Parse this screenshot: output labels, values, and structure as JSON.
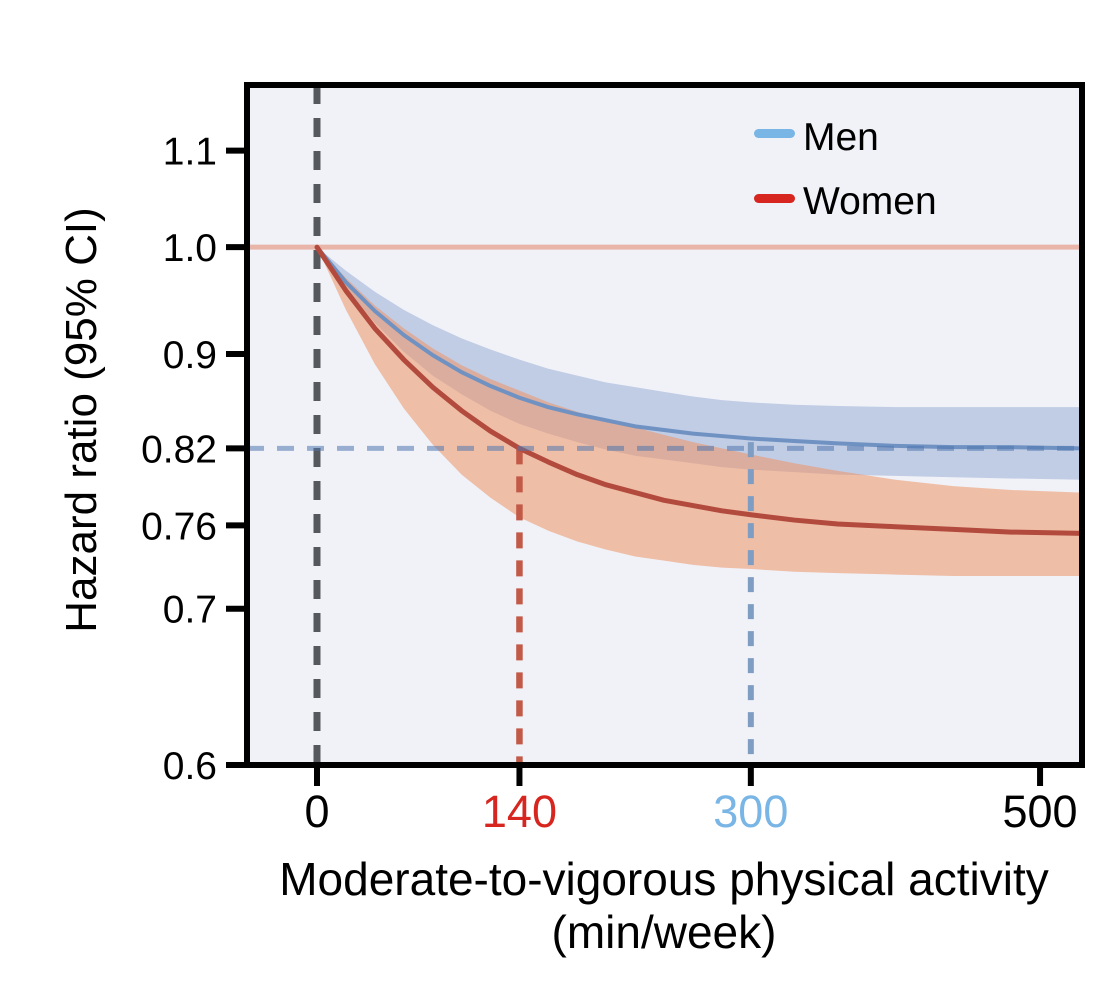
{
  "figure": {
    "background": "#ffffff",
    "plot_background": "#f0f2f8",
    "frame_color": "#000000",
    "tick_color": "#000000",
    "text_color": "#000000"
  },
  "chart_data": {
    "type": "line",
    "title": "",
    "xlabel_line1": "Moderate-to-vigorous physical activity",
    "xlabel_line2": "(min/week)",
    "ylabel": "Hazard ratio (95% CI)",
    "y_scale": "log",
    "x_range": [
      -48.4,
      529
    ],
    "y_range": [
      0.6,
      1.1735
    ],
    "grid": false,
    "legend_position": "top-right-inside",
    "x_ticks": [
      {
        "value": 0,
        "label": "0",
        "color": "#000000"
      },
      {
        "value": 140,
        "label": "140",
        "color": "#d6261f"
      },
      {
        "value": 300,
        "label": "300",
        "color": "#79b5e5"
      },
      {
        "value": 500,
        "label": "500",
        "color": "#000000"
      }
    ],
    "y_ticks": [
      {
        "value": 1.1,
        "label": "1.1"
      },
      {
        "value": 1.0,
        "label": "1.0"
      },
      {
        "value": 0.9,
        "label": "0.9"
      },
      {
        "value": 0.82,
        "label": "0.82"
      },
      {
        "value": 0.76,
        "label": "0.76"
      },
      {
        "value": 0.7,
        "label": "0.7"
      },
      {
        "value": 0.6,
        "label": "0.6"
      }
    ],
    "x": [
      0,
      20,
      40,
      60,
      80,
      100,
      120,
      140,
      160,
      180,
      200,
      220,
      240,
      260,
      280,
      300,
      330,
      360,
      400,
      440,
      480,
      529
    ],
    "series": [
      {
        "name": "men",
        "label": "Men",
        "legend_color": "#79b5e5",
        "line_color": "#6f92c3",
        "line_width": 4,
        "band_color": "rgba(150,168,210,0.52)",
        "y": [
          1.0,
          0.966,
          0.939,
          0.917,
          0.899,
          0.884,
          0.872,
          0.862,
          0.854,
          0.848,
          0.843,
          0.838,
          0.835,
          0.832,
          0.83,
          0.828,
          0.826,
          0.824,
          0.822,
          0.821,
          0.821,
          0.82
        ],
        "ci_upper": [
          1.0,
          0.977,
          0.957,
          0.94,
          0.926,
          0.914,
          0.904,
          0.895,
          0.887,
          0.881,
          0.875,
          0.871,
          0.867,
          0.863,
          0.86,
          0.858,
          0.856,
          0.855,
          0.854,
          0.854,
          0.854,
          0.854
        ],
        "ci_lower": [
          1.0,
          0.96,
          0.928,
          0.902,
          0.881,
          0.865,
          0.851,
          0.84,
          0.832,
          0.825,
          0.819,
          0.814,
          0.811,
          0.808,
          0.805,
          0.803,
          0.801,
          0.799,
          0.798,
          0.797,
          0.796,
          0.795
        ]
      },
      {
        "name": "women",
        "label": "Women",
        "legend_color": "#d6261f",
        "line_color": "#b24b3e",
        "line_width": 5,
        "band_color": "rgba(238,148,100,0.55)",
        "y": [
          1.0,
          0.958,
          0.923,
          0.895,
          0.871,
          0.851,
          0.834,
          0.82,
          0.809,
          0.799,
          0.791,
          0.785,
          0.779,
          0.775,
          0.771,
          0.768,
          0.764,
          0.761,
          0.759,
          0.757,
          0.755,
          0.754
        ],
        "ci_upper": [
          1.0,
          0.97,
          0.944,
          0.923,
          0.905,
          0.89,
          0.878,
          0.868,
          0.858,
          0.85,
          0.843,
          0.837,
          0.831,
          0.825,
          0.82,
          0.815,
          0.808,
          0.802,
          0.795,
          0.79,
          0.787,
          0.785
        ],
        "ci_lower": [
          1.0,
          0.94,
          0.891,
          0.853,
          0.823,
          0.799,
          0.781,
          0.766,
          0.756,
          0.748,
          0.742,
          0.737,
          0.734,
          0.731,
          0.729,
          0.728,
          0.726,
          0.725,
          0.724,
          0.723,
          0.723,
          0.723
        ]
      }
    ],
    "guides": [
      {
        "name": "hr-1-reference-line",
        "orient": "h",
        "y": 1.0,
        "style": "solid",
        "color": "#e9b5a8",
        "width": 5,
        "layer": "below"
      },
      {
        "name": "zero-activity-dashed-line",
        "orient": "v",
        "x": 0,
        "style": "dashed",
        "dash": [
          19,
          14
        ],
        "color": "#55585c",
        "width": 7,
        "layer": "below"
      },
      {
        "name": "women-140-dashed-line",
        "orient": "v",
        "x": 140,
        "y_top": 0.82,
        "style": "dashed",
        "dash": [
          16,
          12
        ],
        "color": "#c25a48",
        "width": 6.5,
        "layer": "below"
      },
      {
        "name": "men-300-dashed-line",
        "orient": "v",
        "x": 300,
        "y_top": 0.825,
        "style": "dashed",
        "dash": [
          15,
          12
        ],
        "color": "#7f9dc3",
        "width": 6,
        "layer": "below"
      },
      {
        "name": "hr-082-dashed-line",
        "orient": "h",
        "y": 0.82,
        "style": "dashed",
        "dash": [
          17,
          13
        ],
        "color": "rgba(80,118,175,0.55)",
        "width": 5,
        "layer": "above"
      }
    ],
    "legend": {
      "items": [
        {
          "label": "Men",
          "color": "#79b5e5"
        },
        {
          "label": "Women",
          "color": "#d6261f"
        }
      ]
    }
  }
}
